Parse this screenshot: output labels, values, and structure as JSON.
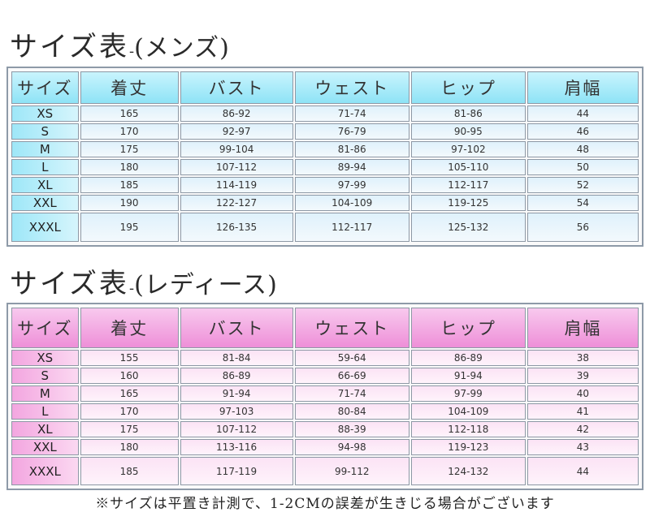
{
  "mens": {
    "title": "サイズ表",
    "dash": "-",
    "subtitle": "(メンズ)",
    "headers": [
      "サイズ",
      "着丈",
      "バスト",
      "ウェスト",
      "ヒップ",
      "肩幅"
    ],
    "rows": [
      [
        "XS",
        "165",
        "86-92",
        "71-74",
        "81-86",
        "44"
      ],
      [
        "S",
        "170",
        "92-97",
        "76-79",
        "90-95",
        "46"
      ],
      [
        "M",
        "175",
        "99-104",
        "81-86",
        "97-102",
        "48"
      ],
      [
        "L",
        "180",
        "107-112",
        "89-94",
        "105-110",
        "50"
      ],
      [
        "XL",
        "185",
        "114-119",
        "97-99",
        "112-117",
        "52"
      ],
      [
        "XXL",
        "190",
        "122-127",
        "104-109",
        "119-125",
        "54"
      ],
      [
        "XXXL",
        "195",
        "126-135",
        "112-117",
        "125-132",
        "56"
      ]
    ]
  },
  "ladies": {
    "title": "サイズ表",
    "dash": "-",
    "subtitle": "(レディース)",
    "headers": [
      "サイズ",
      "着丈",
      "バスト",
      "ウェスト",
      "ヒップ",
      "肩幅"
    ],
    "rows": [
      [
        "XS",
        "155",
        "81-84",
        "59-64",
        "86-89",
        "38"
      ],
      [
        "S",
        "160",
        "86-89",
        "66-69",
        "91-94",
        "39"
      ],
      [
        "M",
        "165",
        "91-94",
        "71-74",
        "97-99",
        "40"
      ],
      [
        "L",
        "170",
        "97-103",
        "80-84",
        "104-109",
        "41"
      ],
      [
        "XL",
        "175",
        "107-112",
        "88-39",
        "112-118",
        "42"
      ],
      [
        "XXL",
        "180",
        "113-116",
        "94-98",
        "119-123",
        "43"
      ],
      [
        "XXXL",
        "185",
        "117-119",
        "99-112",
        "124-132",
        "44"
      ]
    ]
  },
  "note": "※サイズは平置き計測で、1-2CMの誤差が生きじる場合がございます",
  "colors": {
    "mens_accent": "#8ee3f6",
    "ladies_accent": "#ee8fd8"
  }
}
